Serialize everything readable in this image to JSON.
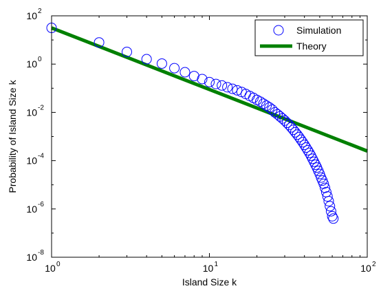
{
  "chart_data": {
    "type": "scatter",
    "title": "",
    "xlabel": "Island Size k",
    "ylabel": "Probability of Island Size k",
    "xscale": "log",
    "yscale": "log",
    "xlim": [
      1,
      100
    ],
    "ylim": [
      1e-08,
      100
    ],
    "grid": false,
    "legend_position": "top-right",
    "x_ticks": [
      {
        "base": "10",
        "exp": "0",
        "value": 1
      },
      {
        "base": "10",
        "exp": "1",
        "value": 10
      },
      {
        "base": "10",
        "exp": "2",
        "value": 100
      }
    ],
    "y_ticks": [
      {
        "base": "10",
        "exp": "2",
        "value": 100
      },
      {
        "base": "10",
        "exp": "0",
        "value": 1
      },
      {
        "base": "10",
        "exp": "-2",
        "value": 0.01
      },
      {
        "base": "10",
        "exp": "-4",
        "value": 0.0001
      },
      {
        "base": "10",
        "exp": "-6",
        "value": 1e-06
      },
      {
        "base": "10",
        "exp": "-8",
        "value": 1e-08
      }
    ],
    "series": [
      {
        "name": "Simulation",
        "kind": "scatter",
        "marker": "circle-open",
        "color": "#0000ff",
        "points": [
          [
            1,
            31.6
          ],
          [
            2,
            7.9
          ],
          [
            3,
            3.2
          ],
          [
            4,
            1.6
          ],
          [
            5,
            1.05
          ],
          [
            6,
            0.68
          ],
          [
            7,
            0.46
          ],
          [
            8,
            0.32
          ],
          [
            9,
            0.24
          ],
          [
            10,
            0.18
          ],
          [
            11,
            0.15
          ],
          [
            12,
            0.13
          ],
          [
            13,
            0.11
          ],
          [
            14,
            0.095
          ],
          [
            15,
            0.082
          ],
          [
            16,
            0.07
          ],
          [
            17,
            0.058
          ],
          [
            18,
            0.048
          ],
          [
            19,
            0.04
          ],
          [
            20,
            0.033
          ],
          [
            21,
            0.028
          ],
          [
            22,
            0.023
          ],
          [
            23,
            0.019
          ],
          [
            24,
            0.016
          ],
          [
            25,
            0.013
          ],
          [
            26,
            0.01
          ],
          [
            27,
            0.0083
          ],
          [
            28,
            0.0068
          ],
          [
            29,
            0.0056
          ],
          [
            30,
            0.0046
          ],
          [
            31,
            0.0037
          ],
          [
            32,
            0.003
          ],
          [
            33,
            0.0024
          ],
          [
            34,
            0.0019
          ],
          [
            35,
            0.0015
          ],
          [
            36,
            0.0012
          ],
          [
            37,
            0.00095
          ],
          [
            38,
            0.00074
          ],
          [
            39,
            0.00058
          ],
          [
            40,
            0.00045
          ],
          [
            41,
            0.00035
          ],
          [
            42,
            0.00027
          ],
          [
            43,
            0.00021
          ],
          [
            44,
            0.00016
          ],
          [
            45,
            0.00012
          ],
          [
            46,
            9e-05
          ],
          [
            47,
            6.8e-05
          ],
          [
            48,
            5.2e-05
          ],
          [
            49,
            3.8e-05
          ],
          [
            50,
            2.8e-05
          ],
          [
            51,
            2e-05
          ],
          [
            52,
            1.5e-05
          ],
          [
            53,
            1.1e-05
          ],
          [
            54,
            7.5e-06
          ],
          [
            55,
            5e-06
          ],
          [
            56,
            3.3e-06
          ],
          [
            57,
            2.1e-06
          ],
          [
            58,
            1.3e-06
          ],
          [
            59,
            8e-07
          ],
          [
            60,
            5e-07
          ],
          [
            61,
            4e-07
          ]
        ]
      },
      {
        "name": "Theory",
        "kind": "line",
        "color": "#008000",
        "points": [
          [
            1,
            31.6
          ],
          [
            100,
            0.00025
          ]
        ]
      }
    ]
  }
}
